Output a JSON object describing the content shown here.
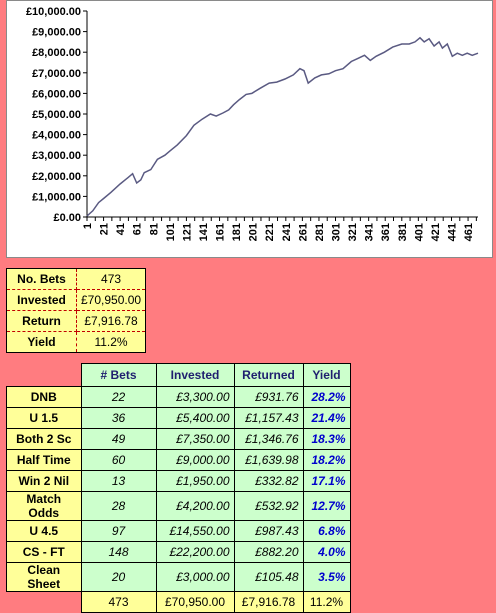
{
  "chart_data": {
    "type": "line",
    "title": "",
    "xlabel": "",
    "ylabel": "",
    "ylim": [
      0,
      10000
    ],
    "yticks": [
      "£0.00",
      "£1,000.00",
      "£2,000.00",
      "£3,000.00",
      "£4,000.00",
      "£5,000.00",
      "£6,000.00",
      "£7,000.00",
      "£8,000.00",
      "£9,000.00",
      "£10,000.00"
    ],
    "xticks": [
      "1",
      "21",
      "41",
      "61",
      "81",
      "101",
      "121",
      "141",
      "161",
      "181",
      "201",
      "221",
      "241",
      "261",
      "281",
      "301",
      "321",
      "341",
      "361",
      "381",
      "401",
      "421",
      "441",
      "461"
    ],
    "xlim": [
      1,
      473
    ],
    "series": [
      {
        "color": "#5a5a82",
        "x": [
          1,
          8,
          15,
          21,
          30,
          41,
          50,
          56,
          61,
          66,
          70,
          78,
          86,
          95,
          101,
          110,
          121,
          130,
          140,
          150,
          157,
          165,
          172,
          178,
          185,
          193,
          200,
          210,
          221,
          230,
          240,
          250,
          258,
          263,
          268,
          276,
          284,
          293,
          301,
          310,
          320,
          328,
          336,
          343,
          350,
          360,
          370,
          381,
          390,
          397,
          403,
          408,
          414,
          420,
          426,
          430,
          436,
          442,
          448,
          454,
          460,
          466,
          473
        ],
        "y": [
          50,
          300,
          700,
          900,
          1200,
          1600,
          1900,
          2100,
          1650,
          1800,
          2150,
          2300,
          2800,
          3000,
          3200,
          3500,
          3950,
          4450,
          4750,
          5000,
          4900,
          5050,
          5200,
          5450,
          5700,
          5950,
          6000,
          6250,
          6500,
          6550,
          6700,
          6900,
          7200,
          7100,
          6500,
          6750,
          6900,
          6950,
          7100,
          7200,
          7550,
          7700,
          7850,
          7600,
          7800,
          8000,
          8250,
          8400,
          8400,
          8500,
          8700,
          8500,
          8650,
          8300,
          8500,
          8200,
          8400,
          7800,
          7950,
          7850,
          7950,
          7850,
          7950
        ]
      }
    ]
  },
  "summary": {
    "rows": [
      {
        "label": "No. Bets",
        "value": "473"
      },
      {
        "label": "Invested",
        "value": "£70,950.00"
      },
      {
        "label": "Return",
        "value": "£7,916.78"
      },
      {
        "label": "Yield",
        "value": "11.2%"
      }
    ]
  },
  "markets": {
    "headers": [
      "# Bets",
      "Invested",
      "Returned",
      "Yield"
    ],
    "rows": [
      {
        "name": "DNB",
        "bets": "22",
        "invested": "£3,300.00",
        "returned": "£931.76",
        "yield": "28.2%"
      },
      {
        "name": "U 1.5",
        "bets": "36",
        "invested": "£5,400.00",
        "returned": "£1,157.43",
        "yield": "21.4%"
      },
      {
        "name": "Both 2 Sc",
        "bets": "49",
        "invested": "£7,350.00",
        "returned": "£1,346.76",
        "yield": "18.3%"
      },
      {
        "name": "Half Time",
        "bets": "60",
        "invested": "£9,000.00",
        "returned": "£1,639.98",
        "yield": "18.2%"
      },
      {
        "name": "Win 2 Nil",
        "bets": "13",
        "invested": "£1,950.00",
        "returned": "£332.82",
        "yield": "17.1%"
      },
      {
        "name": "Match Odds",
        "bets": "28",
        "invested": "£4,200.00",
        "returned": "£532.92",
        "yield": "12.7%"
      },
      {
        "name": "U 4.5",
        "bets": "97",
        "invested": "£14,550.00",
        "returned": "£987.43",
        "yield": "6.8%"
      },
      {
        "name": "CS - FT",
        "bets": "148",
        "invested": "£22,200.00",
        "returned": "£882.20",
        "yield": "4.0%"
      },
      {
        "name": "Clean Sheet",
        "bets": "20",
        "invested": "£3,000.00",
        "returned": "£105.48",
        "yield": "3.5%"
      }
    ],
    "total": {
      "bets": "473",
      "invested": "£70,950.00",
      "returned": "£7,916.78",
      "yield": "11.2%"
    }
  }
}
